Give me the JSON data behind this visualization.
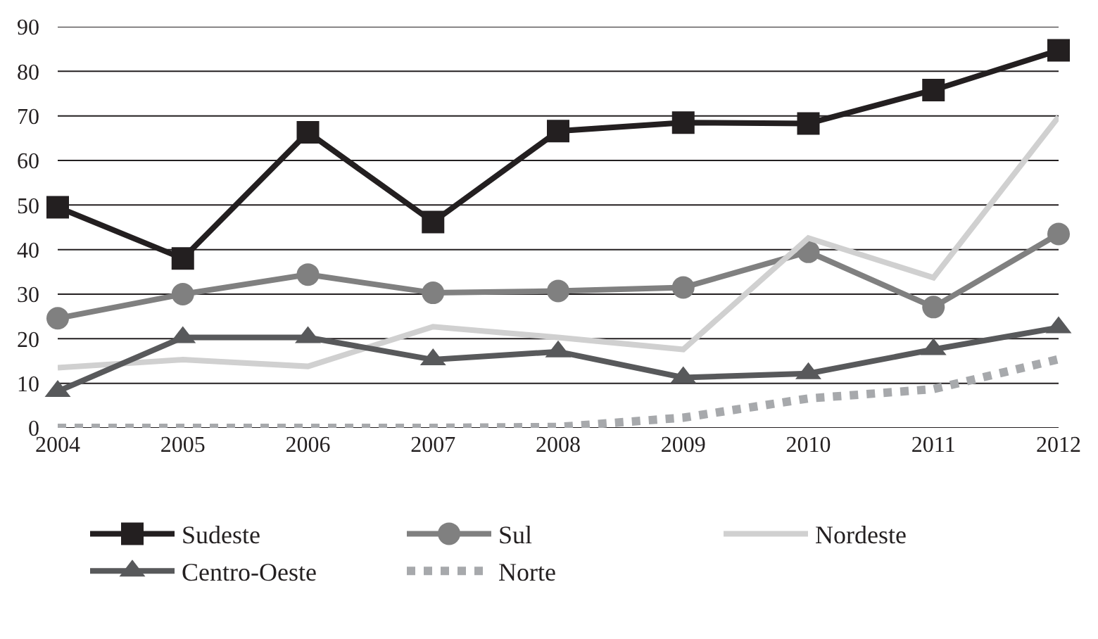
{
  "chart_data": {
    "type": "line",
    "x": [
      2004,
      2005,
      2006,
      2007,
      2008,
      2009,
      2010,
      2011,
      2012
    ],
    "xlim": [
      2004,
      2012
    ],
    "xticks": [
      2004,
      2005,
      2006,
      2007,
      2008,
      2009,
      2010,
      2011,
      2012
    ],
    "ylim": [
      0,
      90
    ],
    "yticks": [
      0,
      10,
      20,
      30,
      40,
      50,
      60,
      70,
      80,
      90
    ],
    "grid": "y",
    "legend": "bottom",
    "line_style": "solid",
    "series": [
      {
        "name": "Sudeste",
        "color": "#231f20",
        "marker": "square",
        "values": [
          49.5,
          38,
          66.3,
          46.2,
          66.6,
          68.5,
          68.3,
          75.8,
          84.7
        ]
      },
      {
        "name": "Sul",
        "color": "#808080",
        "marker": "circle",
        "values": [
          24.6,
          30,
          34.4,
          30.3,
          30.7,
          31.5,
          39.5,
          27.1,
          43.5
        ]
      },
      {
        "name": "Nordeste",
        "color": "#d0d0d0",
        "marker": "none",
        "values": [
          13.5,
          15.3,
          13.8,
          22.7,
          20.3,
          17.6,
          42.6,
          33.7,
          69.8
        ]
      },
      {
        "name": "Centro-Oeste",
        "color": "#58595b",
        "marker": "triangle",
        "values": [
          8.2,
          20.3,
          20.3,
          15.3,
          17.1,
          11.3,
          12.2,
          17.6,
          22.5
        ]
      },
      {
        "name": "Norte",
        "color": "#a7a9ac",
        "marker": "none",
        "line_style": "dotted",
        "values": [
          0,
          0,
          0,
          0,
          0.2,
          2.3,
          6.6,
          8.7,
          15.4
        ]
      }
    ]
  }
}
